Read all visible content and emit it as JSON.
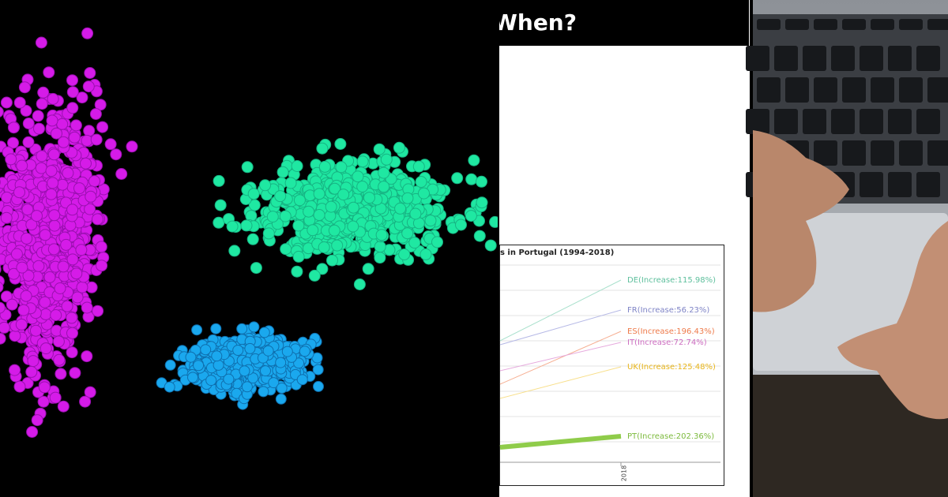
{
  "header": {
    "title": "When?"
  },
  "chart_panel": {
    "title": "s in Portugal (1994-2018)",
    "labels": [
      "DE(Increase:115.98%)",
      "FR(Increase:56.23%)",
      "ES(Increase:196.43%)",
      "IT(Increase:72.74%)",
      "UK(Increase:125.48%)",
      "PT(Increase:202.36%)"
    ],
    "x_label": "2018"
  }
}
